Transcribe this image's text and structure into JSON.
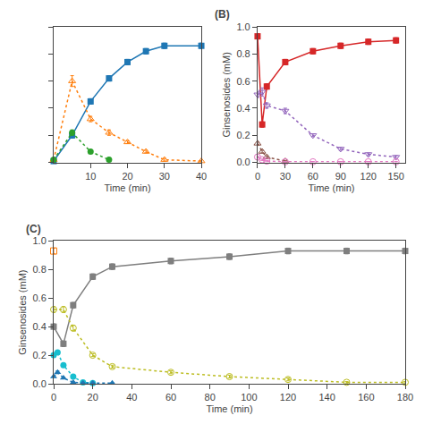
{
  "chart_data": [
    {
      "type": "scatter",
      "x_label": "Time (min)",
      "xlim": [
        0,
        40
      ],
      "ylim": [
        0,
        1.0
      ],
      "xticks": [
        10,
        20,
        30,
        40
      ],
      "yticks": [
        0,
        0.2,
        0.4,
        0.6,
        0.8,
        1
      ],
      "tick_labels": "x",
      "grid": false,
      "series": [
        {
          "x": [
            0,
            5,
            10,
            15,
            20,
            25,
            30,
            40
          ],
          "values": [
            0.01,
            0.2,
            0.45,
            0.62,
            0.74,
            0.82,
            0.86,
            0.86
          ],
          "errors": [
            0.01,
            0.02,
            0.02,
            0.02,
            0.02,
            0.02,
            0.02,
            0.02
          ],
          "marker": "square",
          "line_style": "solid"
        },
        {
          "x": [
            0,
            5,
            10,
            15,
            20,
            25,
            30,
            40
          ],
          "values": [
            0.02,
            0.6,
            0.32,
            0.22,
            0.15,
            0.08,
            0.02,
            0.01
          ],
          "errors": [
            0.01,
            0.04,
            0.02,
            0.02,
            0.01,
            0.01,
            0.01,
            0.005
          ],
          "marker": "triangle-up-open",
          "line_style": "dotted"
        },
        {
          "x": [
            0,
            5,
            10,
            15
          ],
          "values": [
            0.02,
            0.22,
            0.08,
            0.02
          ],
          "errors": [
            0.005,
            0.02,
            0.01,
            0.005
          ],
          "marker": "circle",
          "line_style": "dotted"
        }
      ]
    },
    {
      "type": "scatter",
      "title": "(B)",
      "x_label": "Time (min)",
      "y_label": "Ginsenosides (mM)",
      "xlim": [
        0,
        160
      ],
      "ylim": [
        0,
        1.0
      ],
      "xticks": [
        0,
        30,
        60,
        90,
        120,
        150
      ],
      "yticks": [
        {
          "value": 0,
          "label": "0.0"
        },
        0.2,
        0.4,
        0.6,
        0.8,
        {
          "value": 1,
          "label": "1.0"
        }
      ],
      "grid": false,
      "series": [
        {
          "x": [
            0,
            5,
            10,
            30,
            60,
            90,
            120,
            150
          ],
          "values": [
            0.93,
            0.28,
            0.56,
            0.74,
            0.82,
            0.86,
            0.89,
            0.9
          ],
          "errors": [
            0.02,
            0.02,
            0.02,
            0.02,
            0.02,
            0.02,
            0.02,
            0.02
          ],
          "marker": "square",
          "line_style": "solid"
        },
        {
          "x": [
            0,
            5,
            10,
            30,
            60,
            90,
            120,
            150
          ],
          "values": [
            0.5,
            0.52,
            0.42,
            0.38,
            0.2,
            0.1,
            0.06,
            0.04
          ],
          "errors": [
            0.02,
            0.03,
            0.02,
            0.02,
            0.01,
            0.01,
            0.01,
            0.01
          ],
          "marker": "triangle-down-open",
          "line_style": "dotted"
        },
        {
          "x": [
            0,
            5,
            10,
            30
          ],
          "values": [
            0.14,
            0.08,
            0.04,
            0.01
          ],
          "errors": [
            0.01,
            0.01,
            0.01,
            0.005
          ],
          "marker": "triangle-up-open",
          "line_style": "dotted"
        },
        {
          "x": [
            0,
            5,
            10,
            30,
            60,
            90,
            120,
            150
          ],
          "values": [
            0.04,
            0.02,
            0.01,
            0.005,
            0.005,
            0.005,
            0.005,
            0.005
          ],
          "errors": [
            0.005,
            0.005,
            0.005,
            0.002,
            0.002,
            0.002,
            0.002,
            0.002
          ],
          "marker": "circle-open",
          "line_style": "dotted"
        }
      ]
    },
    {
      "type": "scatter",
      "title": "(C)",
      "x_label": "Time (min)",
      "y_label": "Ginsenosides (mM)",
      "xlim": [
        0,
        180
      ],
      "ylim": [
        0,
        1.0
      ],
      "xticks": [
        0,
        20,
        40,
        60,
        80,
        100,
        120,
        140,
        160,
        180
      ],
      "yticks": [
        {
          "value": 0,
          "label": "0.0"
        },
        0.2,
        0.4,
        0.6,
        0.8,
        {
          "value": 1,
          "label": "1.0"
        }
      ],
      "grid": false,
      "series": [
        {
          "x": [
            0,
            5,
            10,
            20,
            30,
            60,
            90,
            120,
            150,
            180
          ],
          "values": [
            0.4,
            0.28,
            0.55,
            0.75,
            0.82,
            0.86,
            0.89,
            0.93,
            0.93,
            0.93
          ],
          "errors": [
            0.02,
            0.02,
            0.02,
            0.02,
            0.02,
            0.02,
            0.02,
            0.02,
            0.02,
            0.02
          ],
          "marker": "square",
          "line_style": "solid"
        },
        {
          "x": [
            0,
            5,
            10,
            20,
            30,
            60,
            90,
            120,
            150,
            180
          ],
          "values": [
            0.52,
            0.52,
            0.39,
            0.2,
            0.12,
            0.08,
            0.05,
            0.03,
            0.01,
            0.01
          ],
          "errors": [
            0.02,
            0.02,
            0.02,
            0.01,
            0.01,
            0.01,
            0.01,
            0.01,
            0.005,
            0.005
          ],
          "marker": "circle-open",
          "line_style": "dotted"
        },
        {
          "x": [
            0,
            2,
            5,
            10,
            15,
            20
          ],
          "values": [
            0.2,
            0.22,
            0.13,
            0.05,
            0.01,
            0.005
          ],
          "errors": [
            0.01,
            0.01,
            0.01,
            0.01,
            0.005,
            0.002
          ],
          "marker": "circle",
          "line_style": "dotted"
        },
        {
          "x": [
            0,
            2,
            5,
            10,
            15,
            20,
            30
          ],
          "values": [
            0.05,
            0.08,
            0.04,
            0.01,
            0.005,
            0.005,
            0.005
          ],
          "errors": [
            0.005,
            0.01,
            0.005,
            0.003,
            0.002,
            0.002,
            0.002
          ],
          "marker": "triangle-up",
          "line_style": "dotted"
        },
        {
          "x": [
            0
          ],
          "values": [
            0.93
          ],
          "errors": [
            0.02
          ],
          "marker": "square-open",
          "line_style": "none"
        }
      ]
    }
  ]
}
